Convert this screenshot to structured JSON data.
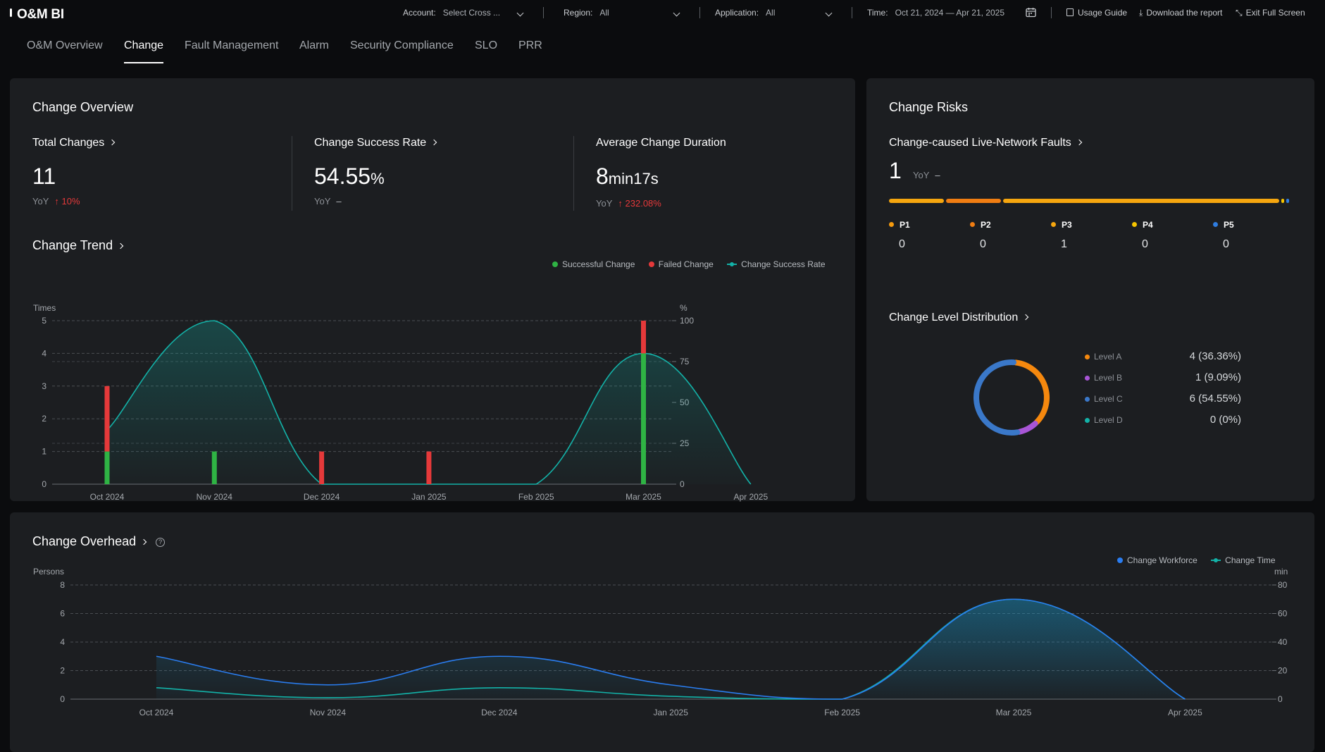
{
  "app": {
    "title": "O&M BI"
  },
  "filters": {
    "account": {
      "label": "Account:",
      "value": "Select Cross ..."
    },
    "region": {
      "label": "Region:",
      "value": "All"
    },
    "application": {
      "label": "Application:",
      "value": "All"
    },
    "time": {
      "label": "Time:",
      "value": "Oct 21, 2024 — Apr 21, 2025"
    }
  },
  "toolbar": {
    "usage_guide": "Usage Guide",
    "download": "Download the report",
    "exit_fullscreen": "Exit Full Screen"
  },
  "tabs": [
    {
      "label": "O&M Overview"
    },
    {
      "label": "Change"
    },
    {
      "label": "Fault Management"
    },
    {
      "label": "Alarm"
    },
    {
      "label": "Security Compliance"
    },
    {
      "label": "SLO"
    },
    {
      "label": "PRR"
    }
  ],
  "overview": {
    "title": "Change Overview",
    "total": {
      "title": "Total Changes",
      "value": "11",
      "yoy_label": "YoY",
      "yoy_value": "10%"
    },
    "success": {
      "title": "Change Success Rate",
      "value": "54.55",
      "unit": "%",
      "yoy_label": "YoY",
      "yoy_value": "–"
    },
    "duration": {
      "title": "Average Change Duration",
      "value_num": "8",
      "value_unit": "min17s",
      "yoy_label": "YoY",
      "yoy_value": "232.08%"
    }
  },
  "trend": {
    "title": "Change Trend",
    "legend": {
      "success": "Successful Change",
      "failed": "Failed Change",
      "rate": "Change Success Rate"
    }
  },
  "risks": {
    "title": "Change Risks",
    "faults": {
      "title": "Change-caused Live-Network Faults",
      "value": "1",
      "yoy_label": "YoY",
      "yoy_value": "–"
    },
    "priorities": [
      {
        "label": "P1",
        "value": "0",
        "color": "#f59a0e"
      },
      {
        "label": "P2",
        "value": "0",
        "color": "#f07d12"
      },
      {
        "label": "P3",
        "value": "1",
        "color": "#f5a60f"
      },
      {
        "label": "P4",
        "value": "0",
        "color": "#f5c400"
      },
      {
        "label": "P5",
        "value": "0",
        "color": "#2f7de1"
      }
    ],
    "level_title": "Change Level Distribution",
    "levels": [
      {
        "label": "Level A",
        "value": "4 (36.36%)",
        "color": "#f5880e",
        "count": 4
      },
      {
        "label": "Level B",
        "value": "1 (9.09%)",
        "color": "#a855d6",
        "count": 1
      },
      {
        "label": "Level C",
        "value": "6 (54.55%)",
        "color": "#3a78c9",
        "count": 6
      },
      {
        "label": "Level D",
        "value": "0 (0%)",
        "color": "#13b2a8",
        "count": 0
      }
    ]
  },
  "overhead": {
    "title": "Change Overhead",
    "help_icon": "question-circle-icon",
    "legend": {
      "workforce": "Change Workforce",
      "time": "Change Time"
    }
  },
  "chart_data": [
    {
      "type": "bar",
      "title": "Change Trend",
      "categories": [
        "Oct 2024",
        "Nov 2024",
        "Dec 2024",
        "Jan 2025",
        "Feb 2025",
        "Mar 2025",
        "Apr 2025"
      ],
      "series": [
        {
          "name": "Successful Change",
          "values": [
            1,
            1,
            0,
            0,
            0,
            4,
            0
          ],
          "color": "#2fb344"
        },
        {
          "name": "Failed Change",
          "values": [
            2,
            0,
            1,
            1,
            0,
            1,
            0
          ],
          "color": "#e5393a"
        },
        {
          "name": "Change Success Rate",
          "type": "line",
          "axis": "right",
          "values": [
            33,
            100,
            0,
            0,
            0,
            80,
            0
          ],
          "color": "#13b2a8"
        }
      ],
      "ylabel": "Times",
      "ylabel_right": "%",
      "ylim": [
        0,
        5
      ],
      "yticks": [
        0,
        1,
        2,
        3,
        4,
        5
      ],
      "ylim_right": [
        0,
        100
      ],
      "yticks_right": [
        0,
        25,
        50,
        75,
        100
      ]
    },
    {
      "type": "line",
      "title": "Change Overhead",
      "categories": [
        "Oct 2024",
        "Nov 2024",
        "Dec 2024",
        "Jan 2025",
        "Feb 2025",
        "Mar 2025",
        "Apr 2025"
      ],
      "series": [
        {
          "name": "Change Workforce",
          "axis": "left",
          "values": [
            3,
            1,
            3,
            1,
            0,
            7,
            0
          ],
          "color": "#2a7df0"
        },
        {
          "name": "Change Time",
          "axis": "right",
          "values": [
            8,
            1,
            8,
            2,
            0,
            70,
            0
          ],
          "color": "#13b2a8"
        }
      ],
      "ylabel": "Persons",
      "ylabel_right": "min",
      "ylim": [
        0,
        8
      ],
      "yticks": [
        0,
        2,
        4,
        6,
        8
      ],
      "ylim_right": [
        0,
        80
      ],
      "yticks_right": [
        0,
        20,
        40,
        60,
        80
      ]
    }
  ]
}
